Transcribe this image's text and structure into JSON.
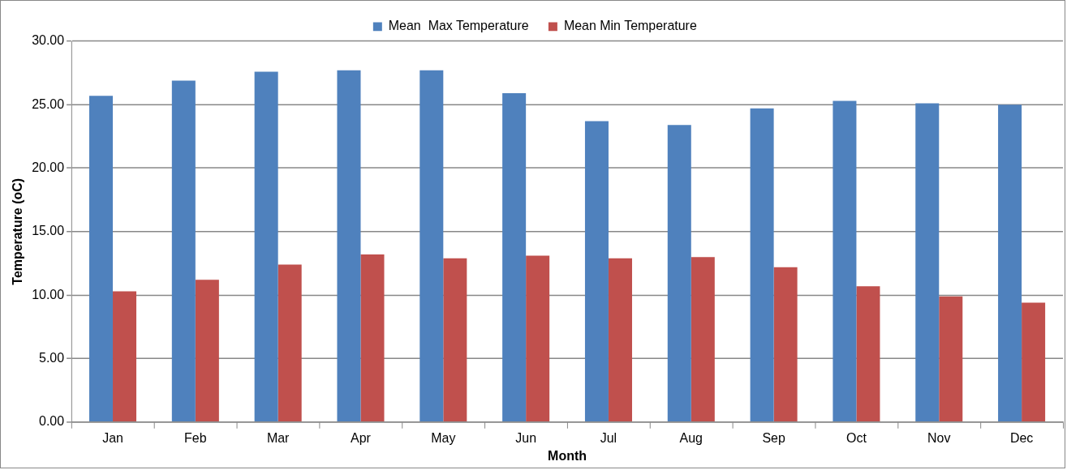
{
  "chart_data": {
    "type": "bar",
    "xlabel": "Month",
    "ylabel": "Temperature (oC)",
    "categories": [
      "Jan",
      "Feb",
      "Mar",
      "Apr",
      "May",
      "Jun",
      "Jul",
      "Aug",
      "Sep",
      "Oct",
      "Nov",
      "Dec"
    ],
    "series": [
      {
        "name": "Mean  Max Temperature",
        "color": "#4f81bd",
        "values": [
          25.7,
          26.9,
          27.6,
          27.7,
          27.7,
          25.9,
          23.7,
          23.4,
          24.7,
          25.3,
          25.1,
          25.0
        ]
      },
      {
        "name": "Mean Min Temperature",
        "color": "#c0504d",
        "values": [
          10.3,
          11.2,
          12.4,
          13.2,
          12.9,
          13.1,
          12.9,
          13.0,
          12.2,
          10.7,
          9.9,
          9.4
        ]
      }
    ],
    "ylim": [
      0,
      30
    ],
    "yticks": [
      {
        "value": 0,
        "label": "0.00"
      },
      {
        "value": 5,
        "label": "5.00"
      },
      {
        "value": 10,
        "label": "10.00"
      },
      {
        "value": 15,
        "label": "15.00"
      },
      {
        "value": 20,
        "label": "20.00"
      },
      {
        "value": 25,
        "label": "25.00"
      },
      {
        "value": 30,
        "label": "30.00"
      }
    ],
    "grid": "y",
    "legend": "top"
  }
}
